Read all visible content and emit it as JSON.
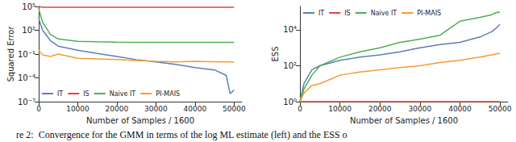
{
  "chart_data": [
    {
      "type": "line",
      "log": "y",
      "grid": false,
      "legend": "lower left",
      "y_label": "Squared Error",
      "x_label": "Number of Samples / 1600",
      "x": [
        0,
        1000,
        3000,
        5000,
        10000,
        15000,
        20000,
        25000,
        30000,
        35000,
        40000,
        45000,
        48000,
        49000,
        50000
      ],
      "xlim": [
        0,
        52000
      ],
      "xticks": [
        0,
        10000,
        20000,
        30000,
        40000,
        50000
      ],
      "ylim": [
        1e-07,
        100000
      ],
      "yticks": [
        {
          "value": 1e-07,
          "label": "10⁻⁷"
        },
        {
          "value": 0.0001,
          "label": "10⁻⁴"
        },
        {
          "value": 0.1,
          "label": "10⁻¹"
        },
        {
          "value": 100,
          "label": "10²"
        },
        {
          "value": 100000,
          "label": "10⁵"
        }
      ],
      "series": [
        {
          "name": "IT",
          "color": "#5b80b8",
          "values": [
            3000,
            100,
            5,
            1,
            0.3,
            0.12,
            0.05,
            0.02,
            0.01,
            0.005,
            0.002,
            0.001,
            0.0002,
            1e-06,
            3e-06
          ]
        },
        {
          "name": "IS",
          "color": "#e5423b",
          "values": [
            100000,
            80000,
            80000,
            80000,
            80000,
            80000,
            80000,
            80000,
            80000,
            80000,
            80000,
            80000,
            80000,
            80000,
            80000
          ]
        },
        {
          "name": "Naive IT",
          "color": "#4cb050",
          "values": [
            50000,
            1000,
            30,
            8,
            4,
            3.5,
            3.2,
            3,
            3,
            3,
            3,
            3,
            3,
            3,
            3
          ]
        },
        {
          "name": "PI-MAIS",
          "color": "#f39c34",
          "values": [
            0.3,
            0.08,
            0.05,
            0.1,
            0.03,
            0.025,
            0.02,
            0.015,
            0.012,
            0.01,
            0.012,
            0.011,
            0.01,
            0.01,
            0.01
          ]
        }
      ]
    },
    {
      "type": "line",
      "log": "y",
      "grid": false,
      "legend": "upper left",
      "y_label": "ESS",
      "x_label": "Number of Samples / 1600",
      "x": [
        0,
        1000,
        3000,
        5000,
        10000,
        15000,
        20000,
        25000,
        30000,
        35000,
        40000,
        45000,
        48000,
        49000,
        50000
      ],
      "xlim": [
        0,
        52000
      ],
      "xticks": [
        0,
        10000,
        20000,
        30000,
        40000,
        50000
      ],
      "ylim": [
        1,
        200000
      ],
      "yticks": [
        {
          "value": 1,
          "label": "10⁰"
        },
        {
          "value": 100,
          "label": "10²"
        },
        {
          "value": 10000,
          "label": "10⁴"
        }
      ],
      "series": [
        {
          "name": "IT",
          "color": "#5b80b8",
          "values": [
            1,
            10,
            60,
            100,
            200,
            300,
            400,
            600,
            1000,
            1500,
            2000,
            4000,
            8000,
            12000,
            20000
          ]
        },
        {
          "name": "IS",
          "color": "#e5423b",
          "values": [
            1,
            1,
            1,
            1,
            1,
            1,
            1,
            1,
            1,
            1,
            1,
            1,
            1,
            1,
            1
          ]
        },
        {
          "name": "Naive IT",
          "color": "#4cb050",
          "values": [
            1,
            5,
            30,
            100,
            300,
            600,
            1000,
            2000,
            3000,
            5000,
            30000,
            50000,
            70000,
            90000,
            100000
          ]
        },
        {
          "name": "PI-MAIS",
          "color": "#f39c34",
          "values": [
            1,
            3,
            8,
            10,
            30,
            45,
            60,
            80,
            100,
            150,
            200,
            300,
            400,
            450,
            500
          ]
        }
      ]
    }
  ],
  "caption": "re 2:  Convergence for the GMM in terms of the log ML estimate (left) and the ESS o"
}
